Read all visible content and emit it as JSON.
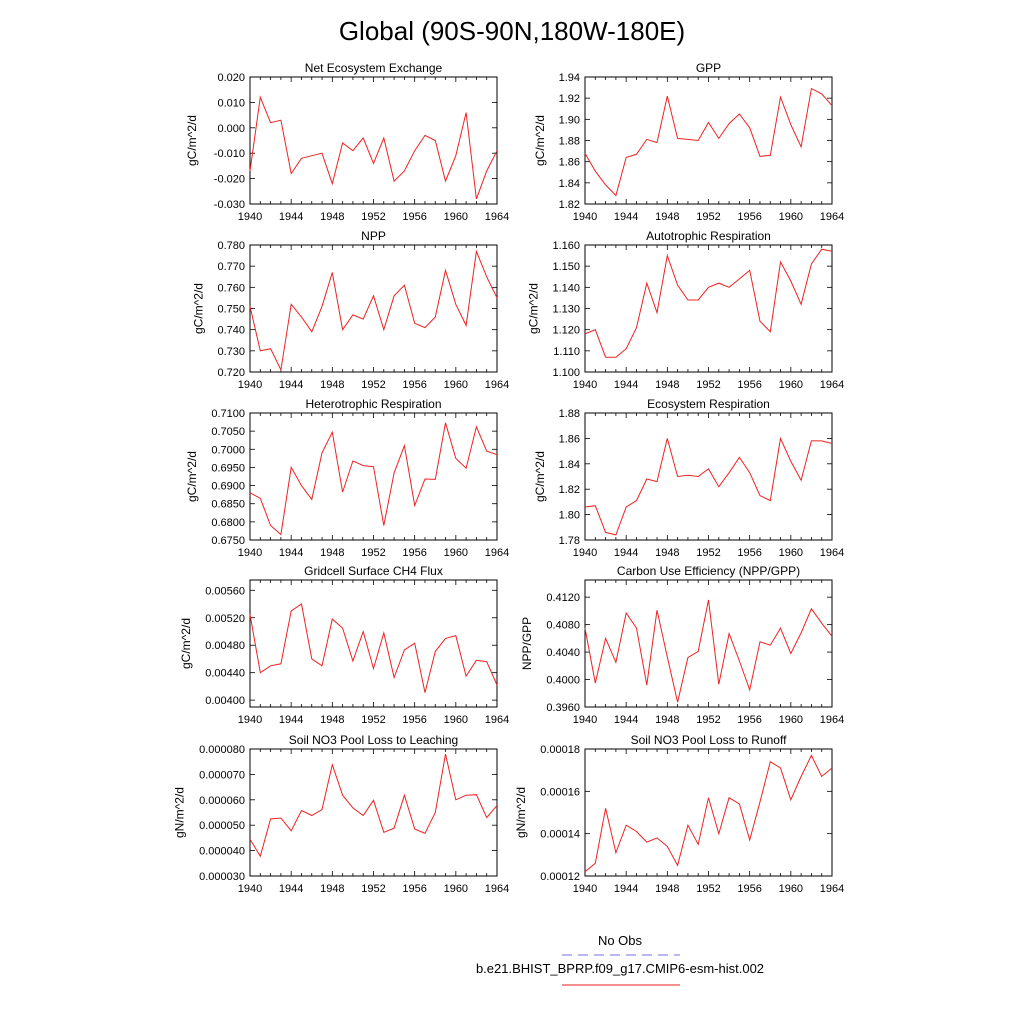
{
  "figure": {
    "title": "Global (90S-90N,180W-180E)"
  },
  "legend": {
    "entries": [
      {
        "label": "No Obs",
        "color": "#7070ee",
        "style": "dashed"
      },
      {
        "label": "b.e21.BHIST_BPRP.f09_g17.CMIP6-esm-hist.002",
        "color": "#ee2222",
        "style": "solid"
      }
    ]
  },
  "chart_data": [
    {
      "type": "line",
      "title": "Net Ecosystem Exchange",
      "ylabel": "gC/m^2/d",
      "xlabel": "",
      "x": [
        1940,
        1941,
        1942,
        1943,
        1944,
        1945,
        1946,
        1947,
        1948,
        1949,
        1950,
        1951,
        1952,
        1953,
        1954,
        1955,
        1956,
        1957,
        1958,
        1959,
        1960,
        1961,
        1962,
        1963,
        1964
      ],
      "xlim": [
        1940,
        1964
      ],
      "xticks": [
        "1940",
        "1944",
        "1948",
        "1952",
        "1956",
        "1960",
        "1964"
      ],
      "ylim": [
        -0.03,
        0.02
      ],
      "yticks": [
        "0.020",
        "0.010",
        "0.000",
        "-0.010",
        "-0.020",
        "-0.030"
      ],
      "series": [
        {
          "values": [
            -0.017,
            0.012,
            0.002,
            0.003,
            -0.018,
            -0.012,
            -0.011,
            -0.01,
            -0.022,
            -0.006,
            -0.009,
            -0.004,
            -0.014,
            -0.004,
            -0.021,
            -0.017,
            -0.009,
            -0.003,
            -0.005,
            -0.021,
            -0.011,
            0.006,
            -0.028,
            -0.017,
            -0.009
          ]
        }
      ]
    },
    {
      "type": "line",
      "title": "GPP",
      "ylabel": "gC/m^2/d",
      "xlabel": "",
      "x": [
        1940,
        1941,
        1942,
        1943,
        1944,
        1945,
        1946,
        1947,
        1948,
        1949,
        1950,
        1951,
        1952,
        1953,
        1954,
        1955,
        1956,
        1957,
        1958,
        1959,
        1960,
        1961,
        1962,
        1963,
        1964
      ],
      "xlim": [
        1940,
        1964
      ],
      "xticks": [
        "1940",
        "1944",
        "1948",
        "1952",
        "1956",
        "1960",
        "1964"
      ],
      "ylim": [
        1.82,
        1.94
      ],
      "yticks": [
        "1.94",
        "1.92",
        "1.90",
        "1.88",
        "1.86",
        "1.84",
        "1.82"
      ],
      "series": [
        {
          "values": [
            1.868,
            1.851,
            1.838,
            1.828,
            1.864,
            1.867,
            1.881,
            1.878,
            1.922,
            1.882,
            1.881,
            1.88,
            1.897,
            1.882,
            1.896,
            1.905,
            1.892,
            1.865,
            1.866,
            1.921,
            1.895,
            1.874,
            1.929,
            1.924,
            1.913
          ]
        }
      ]
    },
    {
      "type": "line",
      "title": "NPP",
      "ylabel": "gC/m^2/d",
      "xlabel": "",
      "x": [
        1940,
        1941,
        1942,
        1943,
        1944,
        1945,
        1946,
        1947,
        1948,
        1949,
        1950,
        1951,
        1952,
        1953,
        1954,
        1955,
        1956,
        1957,
        1958,
        1959,
        1960,
        1961,
        1962,
        1963,
        1964
      ],
      "xlim": [
        1940,
        1964
      ],
      "xticks": [
        "1940",
        "1944",
        "1948",
        "1952",
        "1956",
        "1960",
        "1964"
      ],
      "ylim": [
        0.72,
        0.78
      ],
      "yticks": [
        "0.780",
        "0.770",
        "0.760",
        "0.750",
        "0.740",
        "0.730",
        "0.720"
      ],
      "series": [
        {
          "values": [
            0.751,
            0.73,
            0.731,
            0.721,
            0.752,
            0.746,
            0.739,
            0.751,
            0.767,
            0.74,
            0.747,
            0.745,
            0.756,
            0.74,
            0.756,
            0.761,
            0.743,
            0.741,
            0.746,
            0.768,
            0.752,
            0.742,
            0.777,
            0.765,
            0.755
          ]
        }
      ]
    },
    {
      "type": "line",
      "title": "Autotrophic Respiration",
      "ylabel": "gC/m^2/d",
      "xlabel": "",
      "x": [
        1940,
        1941,
        1942,
        1943,
        1944,
        1945,
        1946,
        1947,
        1948,
        1949,
        1950,
        1951,
        1952,
        1953,
        1954,
        1955,
        1956,
        1957,
        1958,
        1959,
        1960,
        1961,
        1962,
        1963,
        1964
      ],
      "xlim": [
        1940,
        1964
      ],
      "xticks": [
        "1940",
        "1944",
        "1948",
        "1952",
        "1956",
        "1960",
        "1964"
      ],
      "ylim": [
        1.1,
        1.16
      ],
      "yticks": [
        "1.160",
        "1.150",
        "1.140",
        "1.130",
        "1.120",
        "1.110",
        "1.100"
      ],
      "series": [
        {
          "values": [
            1.118,
            1.12,
            1.107,
            1.107,
            1.111,
            1.121,
            1.142,
            1.128,
            1.155,
            1.141,
            1.134,
            1.134,
            1.14,
            1.142,
            1.14,
            1.144,
            1.148,
            1.124,
            1.119,
            1.152,
            1.143,
            1.132,
            1.151,
            1.158,
            1.157
          ]
        }
      ]
    },
    {
      "type": "line",
      "title": "Heterotrophic Respiration",
      "ylabel": "gC/m^2/d",
      "xlabel": "",
      "x": [
        1940,
        1941,
        1942,
        1943,
        1944,
        1945,
        1946,
        1947,
        1948,
        1949,
        1950,
        1951,
        1952,
        1953,
        1954,
        1955,
        1956,
        1957,
        1958,
        1959,
        1960,
        1961,
        1962,
        1963,
        1964
      ],
      "xlim": [
        1940,
        1964
      ],
      "xticks": [
        "1940",
        "1944",
        "1948",
        "1952",
        "1956",
        "1960",
        "1964"
      ],
      "ylim": [
        0.675,
        0.71
      ],
      "yticks": [
        "0.7100",
        "0.7050",
        "0.7000",
        "0.6950",
        "0.6900",
        "0.6850",
        "0.6800",
        "0.6750"
      ],
      "series": [
        {
          "values": [
            0.688,
            0.6865,
            0.679,
            0.6765,
            0.695,
            0.69,
            0.6862,
            0.699,
            0.7047,
            0.6882,
            0.6968,
            0.6955,
            0.6952,
            0.679,
            0.6935,
            0.701,
            0.6845,
            0.6918,
            0.6917,
            0.7073,
            0.6975,
            0.6948,
            0.7062,
            0.6995,
            0.6985
          ]
        }
      ]
    },
    {
      "type": "line",
      "title": "Ecosystem Respiration",
      "ylabel": "gC/m^2/d",
      "xlabel": "",
      "x": [
        1940,
        1941,
        1942,
        1943,
        1944,
        1945,
        1946,
        1947,
        1948,
        1949,
        1950,
        1951,
        1952,
        1953,
        1954,
        1955,
        1956,
        1957,
        1958,
        1959,
        1960,
        1961,
        1962,
        1963,
        1964
      ],
      "xlim": [
        1940,
        1964
      ],
      "xticks": [
        "1940",
        "1944",
        "1948",
        "1952",
        "1956",
        "1960",
        "1964"
      ],
      "ylim": [
        1.78,
        1.88
      ],
      "yticks": [
        "1.88",
        "1.86",
        "1.84",
        "1.82",
        "1.80",
        "1.78"
      ],
      "series": [
        {
          "values": [
            1.806,
            1.807,
            1.786,
            1.784,
            1.806,
            1.811,
            1.828,
            1.826,
            1.86,
            1.83,
            1.831,
            1.83,
            1.836,
            1.822,
            1.833,
            1.845,
            1.833,
            1.815,
            1.811,
            1.86,
            1.842,
            1.827,
            1.858,
            1.858,
            1.856
          ]
        }
      ]
    },
    {
      "type": "line",
      "title": "Gridcell Surface CH4 Flux",
      "ylabel": "gC/m^2/d",
      "xlabel": "",
      "x": [
        1940,
        1941,
        1942,
        1943,
        1944,
        1945,
        1946,
        1947,
        1948,
        1949,
        1950,
        1951,
        1952,
        1953,
        1954,
        1955,
        1956,
        1957,
        1958,
        1959,
        1960,
        1961,
        1962,
        1963,
        1964
      ],
      "xlim": [
        1940,
        1964
      ],
      "xticks": [
        "1940",
        "1944",
        "1948",
        "1952",
        "1956",
        "1960",
        "1964"
      ],
      "ylim": [
        0.0039,
        0.00575
      ],
      "yticks": [
        "0.00560",
        "0.00520",
        "0.00480",
        "0.00440",
        "0.00400"
      ],
      "series": [
        {
          "values": [
            0.00525,
            0.0044,
            0.0045,
            0.00453,
            0.0053,
            0.0054,
            0.0046,
            0.0045,
            0.00518,
            0.00505,
            0.00457,
            0.005,
            0.00446,
            0.00498,
            0.00433,
            0.00473,
            0.00483,
            0.00411,
            0.00471,
            0.0049,
            0.00494,
            0.00435,
            0.00458,
            0.00456,
            0.00422
          ]
        }
      ]
    },
    {
      "type": "line",
      "title": "Carbon Use Efficiency (NPP/GPP)",
      "ylabel": "NPP/GPP",
      "xlabel": "",
      "x": [
        1940,
        1941,
        1942,
        1943,
        1944,
        1945,
        1946,
        1947,
        1948,
        1949,
        1950,
        1951,
        1952,
        1953,
        1954,
        1955,
        1956,
        1957,
        1958,
        1959,
        1960,
        1961,
        1962,
        1963,
        1964
      ],
      "xlim": [
        1940,
        1964
      ],
      "xticks": [
        "1940",
        "1944",
        "1948",
        "1952",
        "1956",
        "1960",
        "1964"
      ],
      "ylim": [
        0.396,
        0.4145
      ],
      "yticks": [
        "0.4120",
        "0.4080",
        "0.4040",
        "0.4000",
        "0.3960"
      ],
      "series": [
        {
          "values": [
            0.4075,
            0.3995,
            0.406,
            0.4025,
            0.4097,
            0.4075,
            0.3992,
            0.4101,
            0.4033,
            0.3967,
            0.4032,
            0.4041,
            0.4116,
            0.3993,
            0.4067,
            0.4027,
            0.3985,
            0.4055,
            0.405,
            0.4075,
            0.4038,
            0.4068,
            0.4103,
            0.4082,
            0.4063
          ]
        }
      ]
    },
    {
      "type": "line",
      "title": "Soil NO3 Pool Loss to Leaching",
      "ylabel": "gN/m^2/d",
      "xlabel": "",
      "x": [
        1940,
        1941,
        1942,
        1943,
        1944,
        1945,
        1946,
        1947,
        1948,
        1949,
        1950,
        1951,
        1952,
        1953,
        1954,
        1955,
        1956,
        1957,
        1958,
        1959,
        1960,
        1961,
        1962,
        1963,
        1964
      ],
      "xlim": [
        1940,
        1964
      ],
      "xticks": [
        "1940",
        "1944",
        "1948",
        "1952",
        "1956",
        "1960",
        "1964"
      ],
      "ylim": [
        3e-05,
        8e-05
      ],
      "yticks": [
        "0.000080",
        "0.000070",
        "0.000060",
        "0.000050",
        "0.000040",
        "0.000030"
      ],
      "series": [
        {
          "values": [
            4.45e-05,
            3.78e-05,
            5.25e-05,
            5.28e-05,
            4.78e-05,
            5.58e-05,
            5.38e-05,
            5.62e-05,
            7.38e-05,
            6.18e-05,
            5.68e-05,
            5.38e-05,
            5.98e-05,
            4.72e-05,
            4.88e-05,
            6.18e-05,
            4.85e-05,
            4.68e-05,
            5.5e-05,
            7.8e-05,
            6e-05,
            6.18e-05,
            6.2e-05,
            5.3e-05,
            5.78e-05
          ]
        }
      ]
    },
    {
      "type": "line",
      "title": "Soil NO3 Pool Loss to Runoff",
      "ylabel": "gN/m^2/d",
      "xlabel": "",
      "x": [
        1940,
        1941,
        1942,
        1943,
        1944,
        1945,
        1946,
        1947,
        1948,
        1949,
        1950,
        1951,
        1952,
        1953,
        1954,
        1955,
        1956,
        1957,
        1958,
        1959,
        1960,
        1961,
        1962,
        1963,
        1964
      ],
      "xlim": [
        1940,
        1964
      ],
      "xticks": [
        "1940",
        "1944",
        "1948",
        "1952",
        "1956",
        "1960",
        "1964"
      ],
      "ylim": [
        0.00012,
        0.00018
      ],
      "yticks": [
        "0.00018",
        "0.00016",
        "0.00014",
        "0.00012"
      ],
      "series": [
        {
          "values": [
            0.000122,
            0.000126,
            0.000152,
            0.000131,
            0.000144,
            0.000141,
            0.000136,
            0.000138,
            0.000134,
            0.000125,
            0.000144,
            0.000135,
            0.000157,
            0.00014,
            0.000157,
            0.000154,
            0.000137,
            0.000155,
            0.000174,
            0.000171,
            0.000156,
            0.000167,
            0.000177,
            0.000167,
            0.000171
          ]
        }
      ]
    }
  ]
}
